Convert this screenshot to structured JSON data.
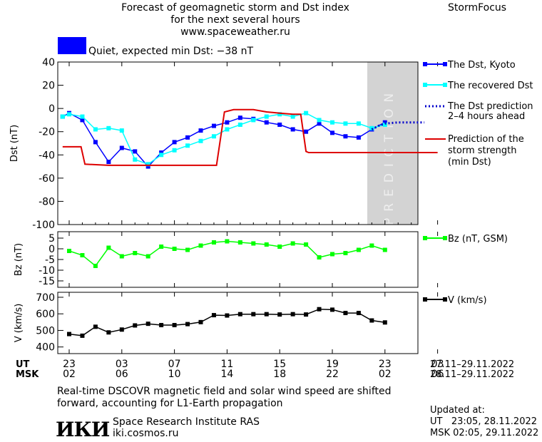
{
  "header": {
    "title_line1": "Forecast of geomagnetic storm and Dst index",
    "title_line2": "for the next several hours",
    "url": "www.spaceweather.ru",
    "brand": "StormFocus"
  },
  "status": {
    "text": "Quiet, expected min Dst: −38 nT",
    "color": "#0000ff"
  },
  "prediction_label": "PREDICTION",
  "legend": {
    "dst_kyoto": "The Dst, Kyoto",
    "dst_recovered": "The recovered Dst",
    "dst_prediction_line1": "The Dst prediction",
    "dst_prediction_line2": "2–4 hours ahead",
    "storm_line1": "Prediction of the",
    "storm_line2": "storm strength",
    "storm_line3": "(min Dst)",
    "bz": "Bz (nT, GSM)",
    "v": "V (km/s)"
  },
  "time_axis": {
    "ut_label": "UT",
    "msk_label": "MSK",
    "ut_ticks": [
      "23",
      "03",
      "07",
      "11",
      "15",
      "19",
      "23",
      "03"
    ],
    "msk_ticks": [
      "02",
      "06",
      "10",
      "14",
      "18",
      "22",
      "02",
      "06"
    ],
    "ut_range": "27.11–29.11.2022",
    "msk_range": "28.11–29.11.2022"
  },
  "footer": {
    "note_line1": "Real-time DSCOVR magnetic field and solar wind speed are shifted",
    "note_line2": "forward, accounting for L1-Earth propagation",
    "logo": "ИКИ",
    "institute": "Space Research Institute RAS",
    "site": "iki.cosmos.ru",
    "updated_label": "Updated at:",
    "updated_ut": "UT   23:05, 28.11.2022",
    "updated_msk": "MSK 02:05, 29.11.2022"
  },
  "colors": {
    "dst_kyoto": "#0000ff",
    "dst_recovered": "#00ffff",
    "dst_prediction": "#0000cc",
    "storm_strength": "#dd0000",
    "bz": "#00ff00",
    "v": "#000000",
    "prediction_band": "#d3d3d3"
  },
  "chart_data": [
    {
      "type": "line",
      "ylabel": "Dst (nT)",
      "ylim": [
        -100,
        40
      ],
      "yticks": [
        40,
        20,
        0,
        -20,
        -40,
        -60,
        -80,
        -100
      ],
      "x_unit": "hours after 23 UT, 27.11.2022",
      "xlim": [
        0,
        28
      ],
      "prediction_from": 24,
      "series": [
        {
          "name": "The Dst, Kyoto",
          "style": "line-square",
          "x": [
            -0.5,
            0,
            1,
            2,
            3,
            4,
            5,
            6,
            7,
            8,
            9,
            10,
            11,
            12,
            13,
            14,
            15,
            16,
            17,
            18,
            19,
            20,
            21,
            22,
            23,
            24
          ],
          "y": [
            -7,
            -4,
            -10,
            -29,
            -46,
            -34,
            -37,
            -50,
            -38,
            -29,
            -25,
            -19,
            -15,
            -12,
            -8,
            -9,
            -12,
            -14,
            -18,
            -20,
            -13,
            -21,
            -24,
            -25,
            -18,
            -12
          ]
        },
        {
          "name": "The recovered Dst",
          "style": "line-square",
          "x": [
            -0.5,
            0,
            1,
            2,
            3,
            4,
            5,
            6,
            7,
            8,
            9,
            10,
            11,
            12,
            13,
            14,
            15,
            16,
            17,
            18,
            19,
            20,
            21,
            22,
            23,
            24
          ],
          "y": [
            -7,
            -5,
            -7,
            -18,
            -17,
            -19,
            -44,
            -48,
            -40,
            -36,
            -32,
            -28,
            -24,
            -18,
            -14,
            -10,
            -7,
            -5,
            -7,
            -4,
            -10,
            -12,
            -13,
            -13,
            -17,
            -14
          ]
        },
        {
          "name": "The Dst prediction",
          "style": "dotted",
          "x": [
            23,
            23.5,
            24,
            25,
            26,
            27
          ],
          "y": [
            -18,
            -15,
            -13,
            -12,
            -12,
            -12
          ]
        },
        {
          "name": "Prediction of the storm strength (min Dst)",
          "style": "step",
          "x": [
            -0.5,
            0,
            0.9,
            1.2,
            3,
            4,
            5,
            6,
            7,
            8,
            9,
            10,
            11,
            11.2,
            11.8,
            12.5,
            13,
            14,
            15,
            16,
            17,
            17.6,
            18,
            18.2,
            19,
            20,
            21,
            22,
            23,
            24,
            25,
            26,
            27,
            28
          ],
          "y": [
            -33,
            -33,
            -33,
            -48,
            -49,
            -49,
            -49,
            -49,
            -49,
            -49,
            -49,
            -49,
            -49,
            -49,
            -3,
            -1,
            -1,
            -1,
            -3,
            -4,
            -5,
            -5,
            -37,
            -38,
            -38,
            -38,
            -38,
            -38,
            -38,
            -38,
            -38,
            -38,
            -38,
            -38
          ]
        }
      ]
    },
    {
      "type": "line",
      "ylabel": "Bz (nT)",
      "ylim": [
        -18,
        8
      ],
      "yticks": [
        5,
        0,
        -5,
        -10,
        -15
      ],
      "series": [
        {
          "name": "Bz (nT, GSM)",
          "x": [
            0,
            1,
            2,
            3,
            4,
            5,
            6,
            7,
            8,
            9,
            10,
            11,
            12,
            13,
            14,
            15,
            16,
            17,
            18,
            19,
            20,
            21,
            22,
            23,
            24
          ],
          "y": [
            -1,
            -3,
            -8,
            0.5,
            -3.5,
            -2,
            -3.5,
            1,
            0,
            -0.5,
            1.5,
            3,
            3.5,
            3,
            2.5,
            2,
            1,
            2.5,
            2,
            -4,
            -2.5,
            -2,
            -0.5,
            1.5,
            -0.5
          ]
        }
      ]
    },
    {
      "type": "line",
      "ylabel": "V (km/s)",
      "ylim": [
        360,
        730
      ],
      "yticks": [
        700,
        600,
        500,
        400
      ],
      "series": [
        {
          "name": "V (km/s)",
          "x": [
            0,
            1,
            2,
            3,
            4,
            5,
            6,
            7,
            8,
            9,
            10,
            11,
            12,
            13,
            14,
            15,
            16,
            17,
            18,
            19,
            20,
            21,
            22,
            23,
            24
          ],
          "y": [
            478,
            468,
            522,
            488,
            505,
            530,
            540,
            532,
            532,
            538,
            550,
            592,
            590,
            598,
            598,
            598,
            596,
            598,
            596,
            628,
            625,
            605,
            605,
            560,
            548
          ]
        }
      ]
    }
  ]
}
